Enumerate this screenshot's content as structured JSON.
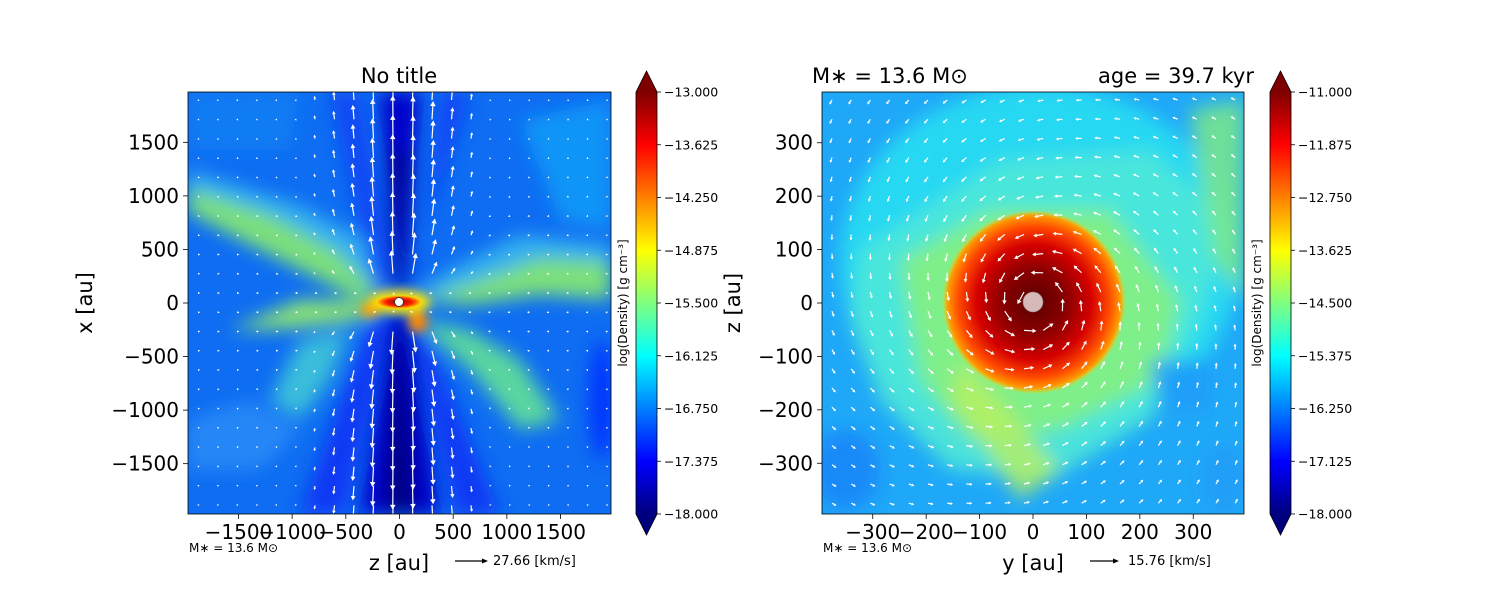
{
  "figure": {
    "left_panel": {
      "title": "No title",
      "xlabel": "z [au]",
      "ylabel": "x [au]",
      "footnote": "M∗ = 13.6 M⊙",
      "vector_key": "27.66 [km/s]"
    },
    "right_panel": {
      "title_left": "M∗ = 13.6 M⊙",
      "title_right": "age = 39.7 kyr",
      "xlabel": "y [au]",
      "ylabel": "z [au]",
      "footnote": "M∗ = 13.6 M⊙",
      "vector_key": "15.76 [km/s]"
    }
  },
  "chart_data": [
    {
      "type": "heatmap",
      "title": "No title",
      "xlabel": "z [au]",
      "ylabel": "x [au]",
      "xlim": [
        -1970,
        1970
      ],
      "ylim": [
        -1970,
        1970
      ],
      "xticks": [
        -1500,
        -1000,
        -500,
        0,
        500,
        1000,
        1500
      ],
      "xtick_labels": [
        "−1500",
        "−1000",
        "−500",
        "0",
        "500",
        "1000",
        "1500"
      ],
      "yticks": [
        -1500,
        -1000,
        -500,
        0,
        500,
        1000,
        1500
      ],
      "ytick_labels": [
        "−1500",
        "−1000",
        "−500",
        "0",
        "500",
        "1000",
        "1500"
      ],
      "colorbar": {
        "label": "log(Density) [g cm⁻³]",
        "range": [
          -18.0,
          -13.0
        ],
        "ticks": [
          -13.0,
          -13.625,
          -14.25,
          -14.875,
          -15.5,
          -16.125,
          -16.75,
          -17.375,
          -18.0
        ],
        "tick_labels": [
          "−13.000",
          "−13.625",
          "−14.250",
          "−14.875",
          "−15.500",
          "−16.125",
          "−16.750",
          "−17.375",
          "−18.000"
        ]
      },
      "vector_key_speed_kms": 27.66,
      "colormap": [
        "#00007f",
        "#0000ff",
        "#007fff",
        "#00ffff",
        "#7fff7f",
        "#ffff00",
        "#ff7f00",
        "#ff0000",
        "#7f0000"
      ]
    },
    {
      "type": "heatmap",
      "title": "M∗ = 13.6 M⊙          age = 39.7 kyr",
      "xlabel": "y [au]",
      "ylabel": "z [au]",
      "xlim": [
        -395,
        395
      ],
      "ylim": [
        -395,
        395
      ],
      "xticks": [
        -300,
        -200,
        -100,
        0,
        100,
        200,
        300
      ],
      "xtick_labels": [
        "−300",
        "−200",
        "−100",
        "0",
        "100",
        "200",
        "300"
      ],
      "yticks": [
        -300,
        -200,
        -100,
        0,
        100,
        200,
        300
      ],
      "ytick_labels": [
        "−300",
        "−200",
        "−100",
        "0",
        "100",
        "200",
        "300"
      ],
      "colorbar": {
        "label": "log(Density) [g cm⁻³]",
        "range": [
          -18.0,
          -11.0
        ],
        "ticks": [
          -11.0,
          -11.875,
          -12.75,
          -13.625,
          -14.5,
          -15.375,
          -16.25,
          -17.125,
          -18.0
        ],
        "tick_labels": [
          "−11.000",
          "−11.875",
          "−12.750",
          "−13.625",
          "−14.500",
          "−15.375",
          "−16.250",
          "−17.125",
          "−18.000"
        ]
      },
      "vector_key_speed_kms": 15.76,
      "colormap": [
        "#00007f",
        "#0000ff",
        "#007fff",
        "#00ffff",
        "#7fff7f",
        "#ffff00",
        "#ff7f00",
        "#ff0000",
        "#7f0000"
      ]
    }
  ]
}
